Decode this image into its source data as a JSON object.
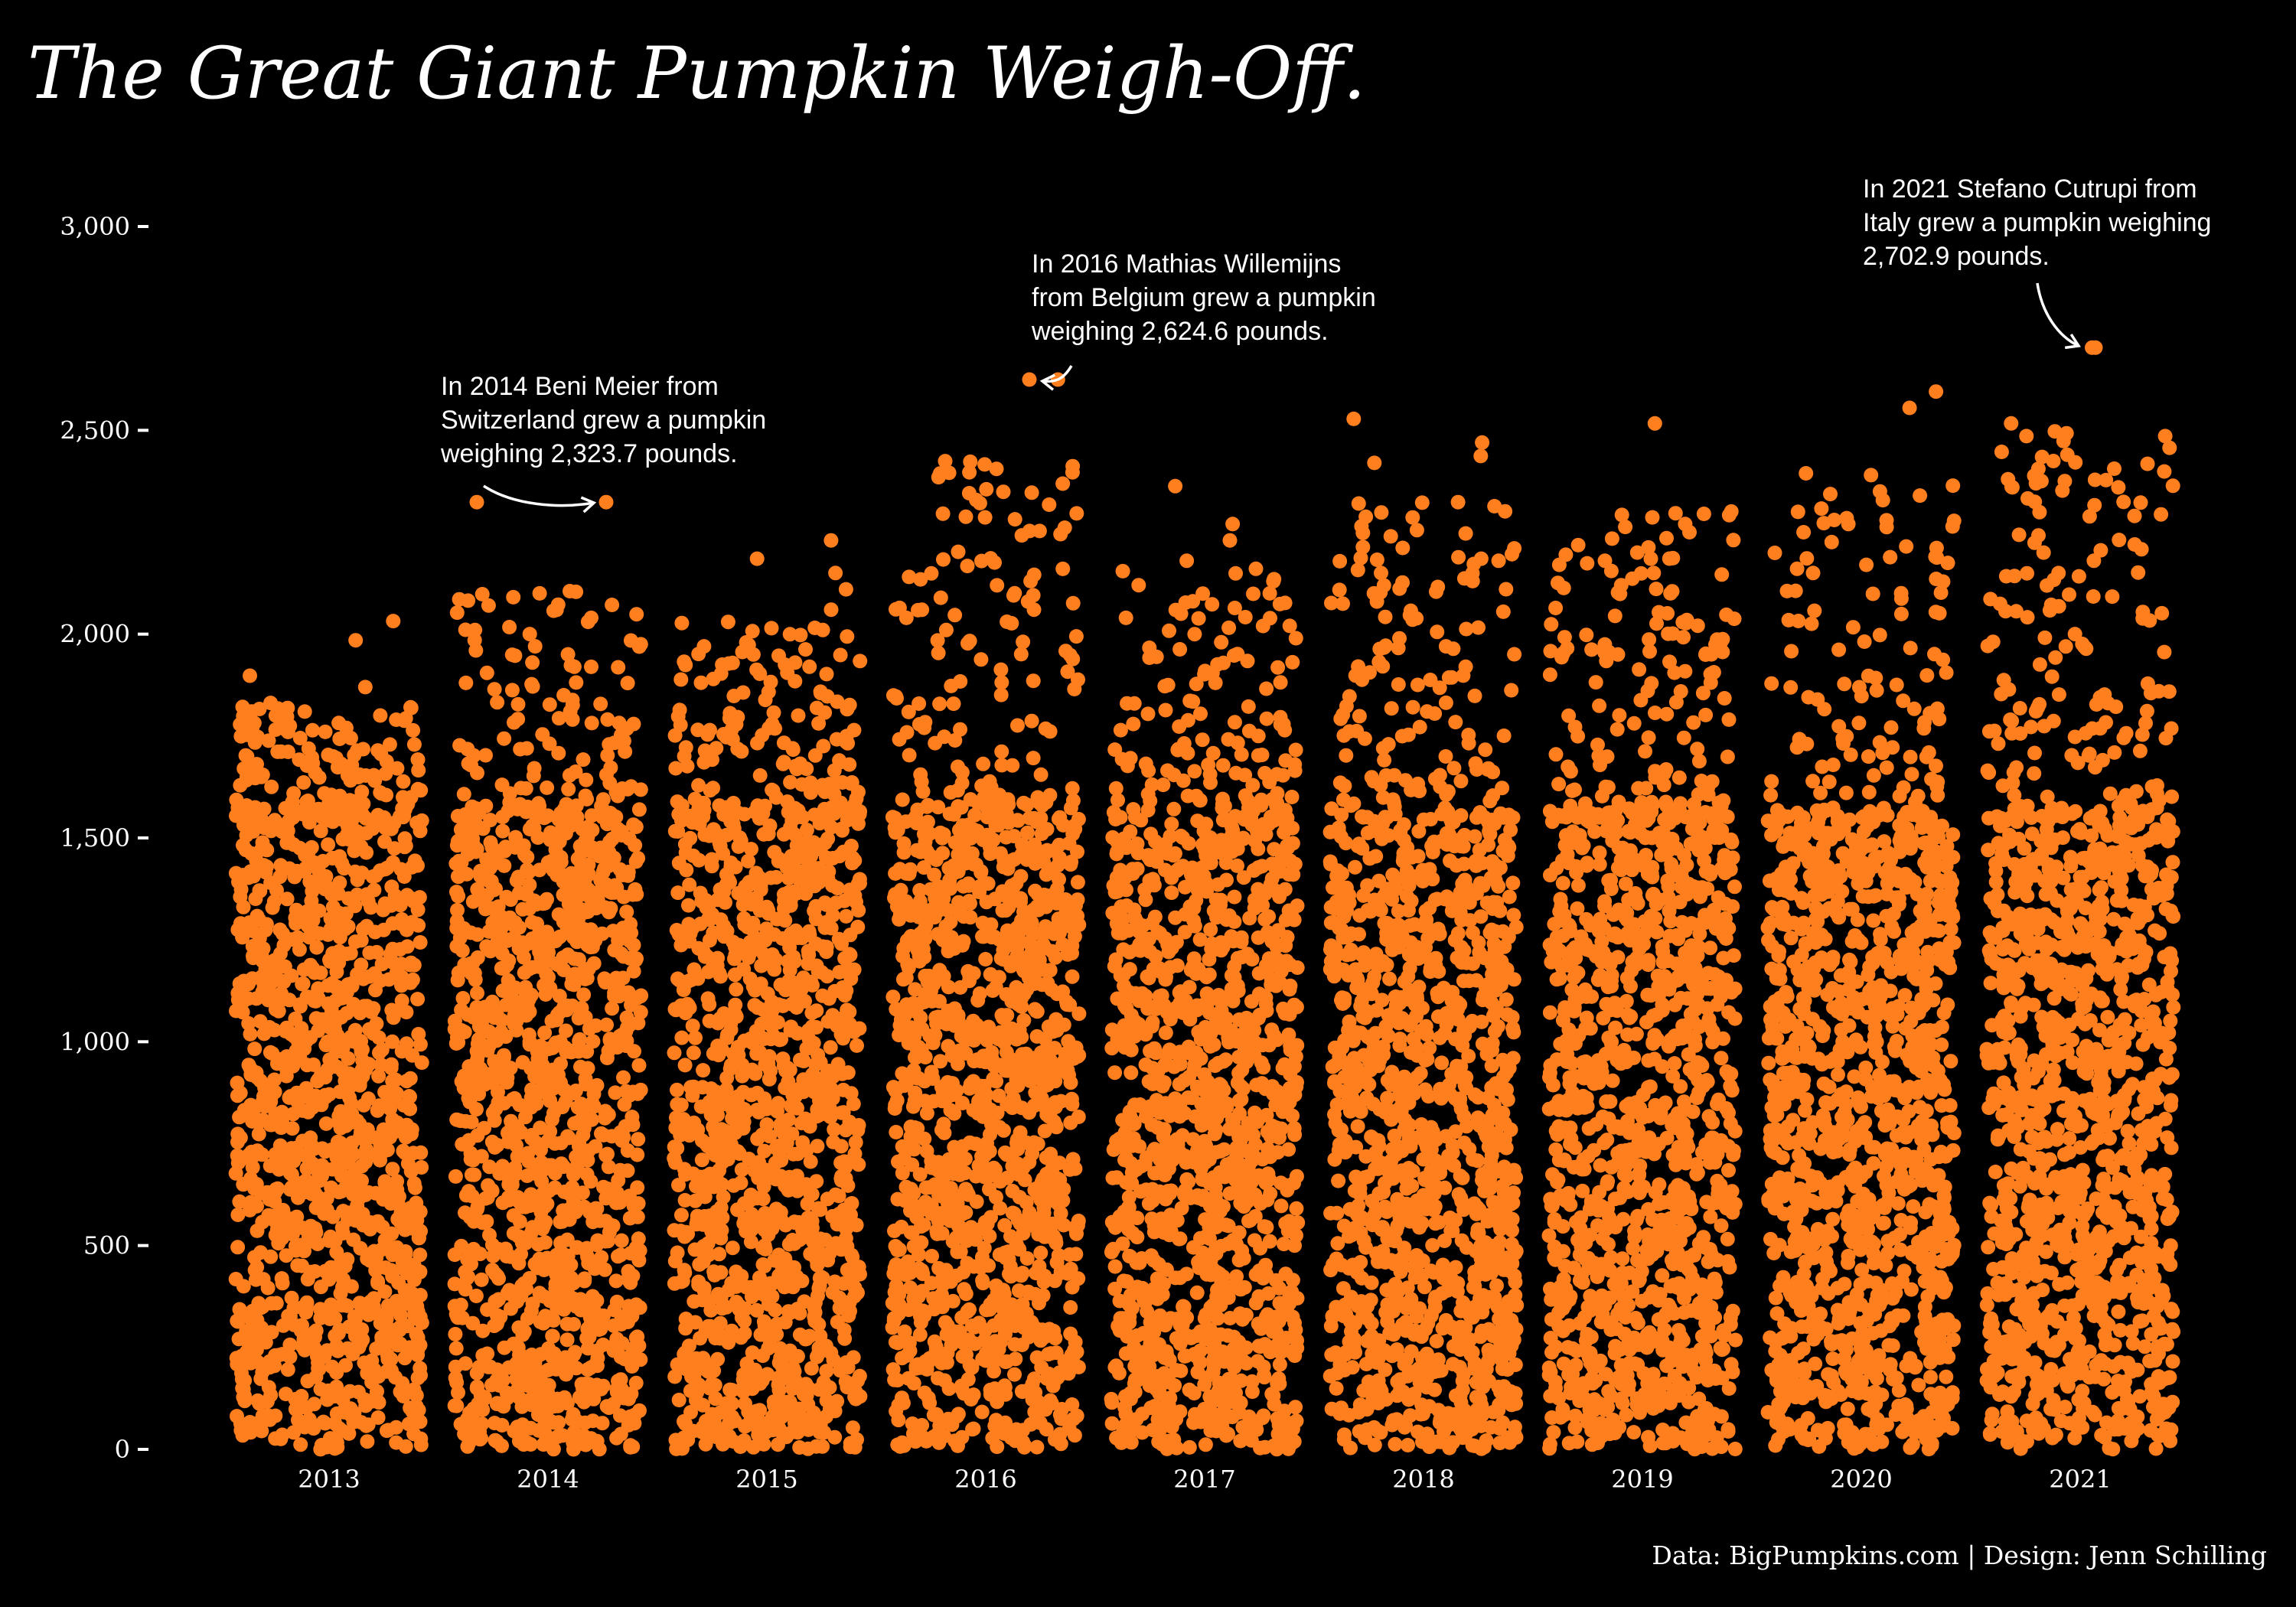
{
  "title": "The Great Giant Pumpkin Weigh-Off.",
  "caption": "Data: BigPumpkins.com | Design: Jenn Schilling",
  "colors": {
    "background": "#000000",
    "pumpkin": "#ff7f1e",
    "text": "#ffffff"
  },
  "chart_data": {
    "type": "scatter",
    "title": "The Great Giant Pumpkin Weigh-Off.",
    "xlabel": "",
    "ylabel": "",
    "ylim": [
      0,
      3000
    ],
    "y_ticks": [
      0,
      500,
      1000,
      1500,
      2000,
      2500,
      3000
    ],
    "y_tick_labels": [
      "0",
      "500",
      "1,000",
      "1,500",
      "2,000",
      "2,500",
      "3,000"
    ],
    "categories": [
      "2013",
      "2014",
      "2015",
      "2016",
      "2017",
      "2018",
      "2019",
      "2020",
      "2021"
    ],
    "grid": false,
    "legend": "none",
    "series": [
      {
        "year": "2013",
        "max": 2032.0,
        "top_points": [
          2032,
          1985,
          1898,
          1870,
          1810,
          1790,
          1782,
          1760,
          1745,
          1700
        ]
      },
      {
        "year": "2014",
        "max": 2323.7,
        "top_points": [
          2323.7,
          2098,
          2100,
          2040,
          2010,
          1970,
          1960,
          1920,
          1905,
          1880
        ]
      },
      {
        "year": "2015",
        "max": 2230.0,
        "top_points": [
          2230,
          2185,
          2150,
          2110,
          2060,
          2030,
          2010,
          1970,
          1950,
          1920
        ]
      },
      {
        "year": "2016",
        "max": 2624.6,
        "top_points": [
          2624.6,
          2261,
          2253,
          2160,
          2130,
          2095,
          2080,
          2060,
          2040,
          2010
        ]
      },
      {
        "year": "2017",
        "max": 2363.0,
        "top_points": [
          2363,
          2270,
          2230,
          2180,
          2120,
          2100,
          2050,
          2020,
          2000,
          1980
        ]
      },
      {
        "year": "2018",
        "max": 2528.0,
        "top_points": [
          2528,
          2470,
          2437,
          2420,
          2288,
          2180,
          2150,
          2130,
          2100,
          2080
        ]
      },
      {
        "year": "2019",
        "max": 2517.0,
        "top_points": [
          2517,
          2295,
          2270,
          2250,
          2200,
          2180,
          2170,
          2150,
          2120,
          2100
        ]
      },
      {
        "year": "2020",
        "max": 2595.0,
        "top_points": [
          2595,
          2555,
          2350,
          2300,
          2280,
          2270,
          2250,
          2215,
          2190,
          2150
        ]
      },
      {
        "year": "2021",
        "max": 2702.9,
        "top_points": [
          2702.9,
          2517,
          2440,
          2380,
          2370,
          2360,
          2360,
          2220,
          2200,
          2180
        ]
      }
    ],
    "annotations": [
      {
        "year": "2014",
        "value": 2323.7,
        "lines": [
          "In 2014 Beni Meier from",
          "Switzerland grew a pumpkin",
          "weighing 2,323.7 pounds."
        ]
      },
      {
        "year": "2016",
        "value": 2624.6,
        "lines": [
          "In 2016 Mathias Willemijns",
          "from Belgium grew a pumpkin",
          "weighing 2,624.6 pounds."
        ]
      },
      {
        "year": "2021",
        "value": 2702.9,
        "lines": [
          "In 2021 Stefano Cutrupi from",
          "Italy grew a pumpkin weighing",
          "2,702.9 pounds."
        ]
      }
    ]
  }
}
